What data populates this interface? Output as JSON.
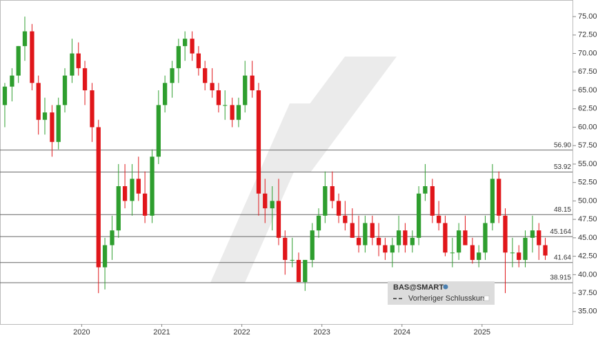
{
  "chart_data": {
    "type": "candlestick",
    "name": "BAS@SMART",
    "previous_close_label": "Vorheriger Schlusskurs",
    "up_color": "#2e9e2e",
    "down_color": "#e0161a",
    "x": [
      2019.04,
      2019.13,
      2019.21,
      2019.29,
      2019.38,
      2019.46,
      2019.54,
      2019.63,
      2019.71,
      2019.79,
      2019.88,
      2019.96,
      2020.04,
      2020.13,
      2020.21,
      2020.29,
      2020.38,
      2020.46,
      2020.54,
      2020.63,
      2020.71,
      2020.79,
      2020.88,
      2020.96,
      2021.04,
      2021.13,
      2021.21,
      2021.29,
      2021.38,
      2021.46,
      2021.54,
      2021.63,
      2021.71,
      2021.79,
      2021.88,
      2021.96,
      2022.04,
      2022.13,
      2022.21,
      2022.29,
      2022.38,
      2022.46,
      2022.54,
      2022.63,
      2022.71,
      2022.79,
      2022.88,
      2022.96,
      2023.04,
      2023.13,
      2023.21,
      2023.29,
      2023.38,
      2023.46,
      2023.54,
      2023.63,
      2023.71,
      2023.79,
      2023.88,
      2023.96,
      2024.04,
      2024.13,
      2024.21,
      2024.29,
      2024.38,
      2024.46,
      2024.54,
      2024.63,
      2024.71,
      2024.79,
      2024.88,
      2024.96,
      2025.04,
      2025.13,
      2025.21,
      2025.29,
      2025.38,
      2025.46,
      2025.54,
      2025.63,
      2025.71,
      2025.79
    ],
    "open": [
      63,
      65.5,
      67,
      71,
      73,
      66,
      61,
      62,
      58,
      63,
      67,
      70,
      68,
      65,
      60,
      41,
      44,
      46,
      52,
      50,
      53,
      51,
      48,
      56,
      63,
      66,
      68,
      71,
      72,
      70,
      68,
      66,
      65,
      63,
      63,
      61,
      63,
      67,
      65,
      51,
      49,
      50,
      45,
      42,
      42,
      39,
      42,
      46,
      48,
      52,
      50,
      48,
      47,
      45,
      44,
      47,
      45,
      44,
      43,
      44,
      46,
      44,
      45,
      51,
      52,
      48,
      47,
      43,
      43,
      46,
      44,
      42,
      43,
      47,
      53,
      48,
      43,
      43,
      42,
      45,
      46,
      44
    ],
    "high": [
      66,
      68,
      71,
      75,
      74,
      67,
      64,
      63,
      64,
      68,
      72,
      71.5,
      69,
      66,
      61,
      45,
      48,
      55,
      55,
      55,
      56,
      54,
      57,
      65,
      67,
      69,
      72,
      73,
      73,
      71,
      69,
      68,
      66,
      65,
      64,
      64,
      69,
      69,
      66,
      53,
      52,
      53,
      46,
      45,
      43,
      42,
      47,
      49,
      54,
      54,
      51,
      50,
      49,
      48,
      48,
      48,
      47,
      45,
      45,
      48,
      47,
      46,
      52,
      55,
      53,
      50,
      48,
      45,
      47,
      48,
      45,
      44,
      48,
      55,
      54,
      49,
      45,
      44,
      46,
      48,
      47,
      45
    ],
    "low": [
      60,
      63.5,
      66,
      69,
      65,
      59,
      59,
      56,
      57,
      62,
      66,
      67,
      63,
      58,
      37.5,
      38,
      42,
      45,
      49,
      48,
      50,
      47,
      47,
      55,
      62,
      64,
      66,
      69,
      69,
      67,
      65,
      64,
      62,
      61,
      60,
      60,
      62,
      64,
      48,
      47,
      46,
      44,
      40,
      41,
      39,
      37.8,
      41,
      45,
      47,
      49,
      47,
      46,
      45,
      43,
      43,
      44,
      42.5,
      42,
      41,
      43,
      43,
      43,
      44,
      50,
      47,
      46,
      42.5,
      41,
      42,
      44,
      41.5,
      41,
      42,
      46,
      47,
      37.5,
      41,
      41,
      41,
      43,
      42,
      42
    ],
    "close": [
      65.5,
      67,
      71,
      73,
      66,
      61,
      62,
      58,
      63,
      67,
      70,
      68,
      65,
      60,
      41,
      44,
      46,
      52,
      50,
      53,
      51,
      48,
      56,
      63,
      66,
      68,
      71,
      72,
      70,
      68,
      66,
      65,
      63,
      63,
      61,
      63,
      67,
      65,
      51,
      49,
      50,
      45,
      42,
      42,
      39,
      42,
      46,
      48,
      52,
      50,
      48,
      47,
      45,
      44,
      47,
      45,
      44,
      43,
      44,
      46,
      44,
      45,
      51,
      52,
      48,
      47,
      43,
      43,
      46,
      44,
      42,
      43,
      47,
      53,
      48,
      43,
      43,
      42,
      45,
      46,
      44,
      42.6
    ],
    "xlim": [
      2018.98,
      2026.13
    ],
    "xticks": [
      2020,
      2021,
      2022,
      2023,
      2024,
      2025
    ],
    "ylim": [
      33.3,
      77.25
    ],
    "yticks": [
      {
        "value": 35,
        "label": "35.00"
      },
      {
        "value": 37.5,
        "label": "37.50"
      },
      {
        "value": 40,
        "label": "40.00"
      },
      {
        "value": 42.5,
        "label": "42.50"
      },
      {
        "value": 45,
        "label": "45.00"
      },
      {
        "value": 47.5,
        "label": "47.50"
      },
      {
        "value": 50,
        "label": "50.00"
      },
      {
        "value": 52.5,
        "label": "52.50"
      },
      {
        "value": 55,
        "label": "55.00"
      },
      {
        "value": 57.5,
        "label": "57.50"
      },
      {
        "value": 60,
        "label": "60.00"
      },
      {
        "value": 62.5,
        "label": "62.50"
      },
      {
        "value": 65,
        "label": "65.00"
      },
      {
        "value": 67.5,
        "label": "67.50"
      },
      {
        "value": 70,
        "label": "70.00"
      },
      {
        "value": 72.5,
        "label": "72.50"
      },
      {
        "value": 75,
        "label": "75.00"
      }
    ],
    "levels": [
      {
        "value": 56.9,
        "label": "56.90"
      },
      53.92,
      48.15,
      45.164,
      41.64,
      38.915
    ]
  }
}
